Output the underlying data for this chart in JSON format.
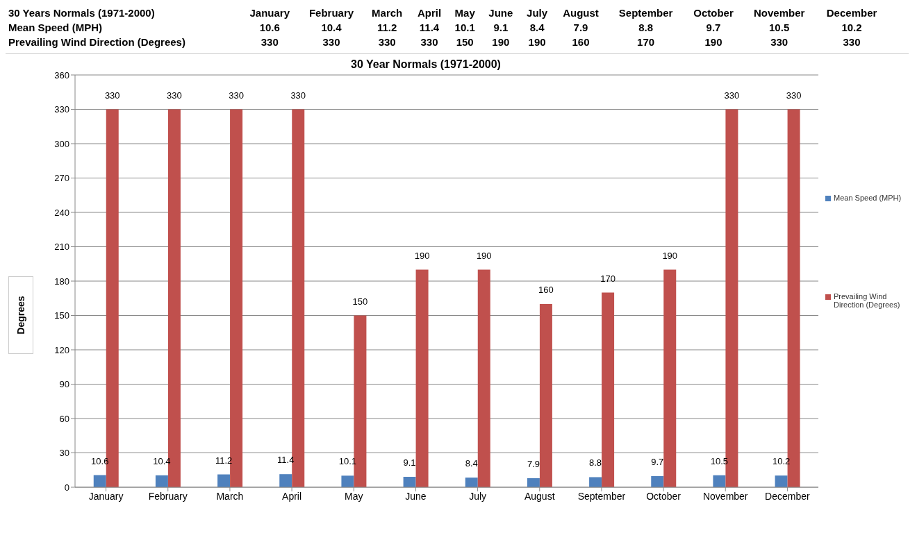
{
  "chart_data": [
    {
      "type": "other",
      "title": "30 Years Normals (1971-2000)",
      "categories": [
        "January",
        "February",
        "March",
        "April",
        "May",
        "June",
        "July",
        "August",
        "September",
        "October",
        "November",
        "December"
      ],
      "series": [
        {
          "name": "Mean Speed (MPH)",
          "values": [
            10.6,
            10.4,
            11.2,
            11.4,
            10.1,
            9.1,
            8.4,
            7.9,
            8.8,
            9.7,
            10.5,
            10.2
          ]
        },
        {
          "name": "Prevailing Wind Direction (Degrees)",
          "values": [
            330,
            330,
            330,
            330,
            150,
            190,
            190,
            160,
            170,
            190,
            330,
            330
          ]
        }
      ],
      "data_labels": true
    },
    {
      "type": "bar",
      "title": "30 Year Normals (1971-2000)",
      "ylabel": "Degrees",
      "categories": [
        "January",
        "February",
        "March",
        "April",
        "May",
        "June",
        "July",
        "August",
        "September",
        "October",
        "November",
        "December"
      ],
      "series": [
        {
          "name": "Mean Speed (MPH)",
          "color": "#4f81bd",
          "values": [
            10.6,
            10.4,
            11.2,
            11.4,
            10.1,
            9.1,
            8.4,
            7.9,
            8.8,
            9.7,
            10.5,
            10.2
          ]
        },
        {
          "name": "Prevailing Wind Direction (Degrees)",
          "color": "#c0504d",
          "values": [
            330,
            330,
            330,
            330,
            150,
            190,
            190,
            160,
            170,
            190,
            330,
            330
          ]
        }
      ],
      "ylim": [
        0,
        360
      ],
      "yticks": [
        0,
        30,
        60,
        90,
        120,
        150,
        180,
        210,
        240,
        270,
        300,
        330,
        360
      ],
      "grid": "y",
      "legend": "right",
      "data_labels": true
    }
  ]
}
